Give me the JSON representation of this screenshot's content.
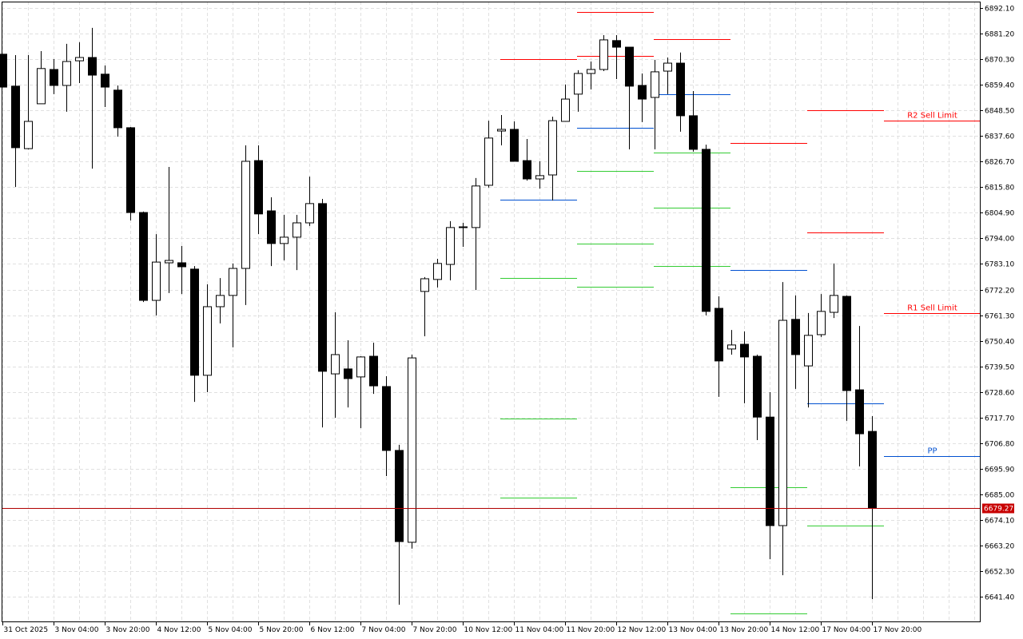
{
  "chart_data": {
    "type": "candlestick",
    "timeframe_hours": 4,
    "ylim": [
      6630.9,
      6894.8
    ],
    "grid": true,
    "price_ticks": [
      "6892.10",
      "6881.20",
      "6870.30",
      "6859.40",
      "6848.50",
      "6837.60",
      "6826.70",
      "6815.80",
      "6804.90",
      "6794.00",
      "6783.10",
      "6772.20",
      "6761.30",
      "6750.40",
      "6739.50",
      "6728.60",
      "6717.70",
      "6706.80",
      "6695.90",
      "6685.00",
      "6674.10",
      "6663.20",
      "6652.30",
      "6641.40"
    ],
    "time_labels": [
      {
        "bar": 0,
        "label": "31 Oct 2025"
      },
      {
        "bar": 4,
        "label": "3 Nov 04:00"
      },
      {
        "bar": 8,
        "label": "3 Nov 20:00"
      },
      {
        "bar": 12,
        "label": "4 Nov 12:00"
      },
      {
        "bar": 16,
        "label": "5 Nov 04:00"
      },
      {
        "bar": 20,
        "label": "5 Nov 20:00"
      },
      {
        "bar": 24,
        "label": "6 Nov 12:00"
      },
      {
        "bar": 28,
        "label": "7 Nov 04:00"
      },
      {
        "bar": 32,
        "label": "7 Nov 20:00"
      },
      {
        "bar": 36,
        "label": "10 Nov 12:00"
      },
      {
        "bar": 40,
        "label": "11 Nov 04:00"
      },
      {
        "bar": 44,
        "label": "11 Nov 20:00"
      },
      {
        "bar": 48,
        "label": "12 Nov 12:00"
      },
      {
        "bar": 52,
        "label": "13 Nov 04:00"
      },
      {
        "bar": 56,
        "label": "13 Nov 20:00"
      },
      {
        "bar": 60,
        "label": "14 Nov 12:00"
      },
      {
        "bar": 64,
        "label": "17 Nov 04:00"
      },
      {
        "bar": 68,
        "label": "17 Nov 20:00"
      }
    ],
    "candles_ohlc": [
      [
        6872.4,
        6872.4,
        6858.4,
        6858.4
      ],
      [
        6858.8,
        6872.0,
        6815.9,
        6832.6
      ],
      [
        6832.2,
        6872.0,
        6831.9,
        6843.8
      ],
      [
        6851.3,
        6873.7,
        6851.3,
        6866.3
      ],
      [
        6865.9,
        6870.3,
        6855.4,
        6859.1
      ],
      [
        6859.1,
        6876.8,
        6847.9,
        6869.3
      ],
      [
        6869.6,
        6877.5,
        6860.1,
        6871.0
      ],
      [
        6871.0,
        6883.6,
        6823.7,
        6863.5
      ],
      [
        6863.9,
        6867.6,
        6849.9,
        6858.4
      ],
      [
        6857.1,
        6859.1,
        6837.3,
        6841.1
      ],
      [
        6841.1,
        6841.4,
        6801.6,
        6805.0
      ],
      [
        6805.0,
        6805.4,
        6766.9,
        6767.6
      ],
      [
        6767.6,
        6795.8,
        6761.2,
        6783.9
      ],
      [
        6783.6,
        6824.4,
        6770.7,
        6784.6
      ],
      [
        6783.6,
        6790.8,
        6770.3,
        6781.9
      ],
      [
        6780.9,
        6782.2,
        6724.4,
        6735.7
      ],
      [
        6735.7,
        6774.4,
        6728.5,
        6764.9
      ],
      [
        6764.9,
        6777.1,
        6757.8,
        6769.7
      ],
      [
        6769.7,
        6783.3,
        6747.6,
        6781.2
      ],
      [
        6781.2,
        6833.6,
        6765.6,
        6826.8
      ],
      [
        6827.1,
        6833.6,
        6795.8,
        6804.4
      ],
      [
        6805.7,
        6811.5,
        6782.2,
        6791.8
      ],
      [
        6791.8,
        6804.0,
        6784.6,
        6794.5
      ],
      [
        6794.5,
        6804.0,
        6780.5,
        6800.6
      ],
      [
        6800.6,
        6820.3,
        6799.3,
        6808.8
      ],
      [
        6808.8,
        6810.8,
        6713.5,
        6737.4
      ],
      [
        6736.3,
        6762.5,
        6717.6,
        6744.5
      ],
      [
        6738.4,
        6750.6,
        6722.0,
        6734.3
      ],
      [
        6735.0,
        6743.8,
        6713.2,
        6743.5
      ],
      [
        6743.8,
        6749.6,
        6727.8,
        6731.2
      ],
      [
        6730.9,
        6735.3,
        6692.8,
        6703.7
      ],
      [
        6703.7,
        6706.1,
        6638.0,
        6664.9
      ],
      [
        6664.6,
        6744.5,
        6661.9,
        6743.1
      ],
      [
        6771.4,
        6777.5,
        6752.3,
        6776.8
      ],
      [
        6776.5,
        6785.3,
        6773.1,
        6783.3
      ],
      [
        6782.9,
        6801.3,
        6776.1,
        6798.6
      ],
      [
        6798.6,
        6800.6,
        6790.4,
        6798.9
      ],
      [
        6798.6,
        6819.7,
        6772.0,
        6816.3
      ],
      [
        6816.6,
        6844.1,
        6815.6,
        6836.7
      ],
      [
        6839.7,
        6846.5,
        6833.6,
        6840.4
      ],
      [
        6840.4,
        6843.8,
        6826.8,
        6826.8
      ],
      [
        6827.1,
        6836.3,
        6818.6,
        6819.3
      ],
      [
        6819.3,
        6826.8,
        6815.2,
        6820.7
      ],
      [
        6821.0,
        6845.8,
        6810.1,
        6844.1
      ],
      [
        6843.8,
        6859.5,
        6843.8,
        6853.3
      ],
      [
        6855.4,
        6865.6,
        6847.9,
        6864.2
      ],
      [
        6864.2,
        6869.3,
        6857.4,
        6865.9
      ],
      [
        6865.9,
        6880.5,
        6865.2,
        6878.5
      ],
      [
        6878.2,
        6880.5,
        6861.8,
        6875.4
      ],
      [
        6875.4,
        6875.4,
        6831.9,
        6858.8
      ],
      [
        6859.1,
        6864.2,
        6843.5,
        6853.3
      ],
      [
        6854.0,
        6870.0,
        6831.9,
        6864.9
      ],
      [
        6865.2,
        6871.0,
        6855.4,
        6868.6
      ],
      [
        6868.6,
        6873.1,
        6839.4,
        6846.2
      ],
      [
        6846.2,
        6856.7,
        6830.9,
        6831.9
      ],
      [
        6831.9,
        6833.9,
        6761.2,
        6762.9
      ],
      [
        6764.2,
        6769.3,
        6726.5,
        6741.8
      ],
      [
        6746.9,
        6755.0,
        6744.5,
        6748.6
      ],
      [
        6748.9,
        6754.4,
        6723.8,
        6743.5
      ],
      [
        6743.8,
        6744.5,
        6708.1,
        6717.9
      ],
      [
        6717.9,
        6728.5,
        6657.4,
        6671.7
      ],
      [
        6671.7,
        6775.4,
        6650.6,
        6759.1
      ],
      [
        6759.5,
        6769.7,
        6729.9,
        6744.5
      ],
      [
        6739.7,
        6762.2,
        6722.0,
        6752.7
      ],
      [
        6753.0,
        6770.3,
        6752.0,
        6762.9
      ],
      [
        6762.5,
        6783.3,
        6760.1,
        6769.7
      ],
      [
        6769.3,
        6769.7,
        6716.3,
        6729.2
      ],
      [
        6729.5,
        6756.7,
        6696.9,
        6710.8
      ],
      [
        6711.8,
        6718.3,
        6640.4,
        6679.27
      ]
    ],
    "pivot_days": [
      {
        "start_bar": 39,
        "end_bar": 45,
        "levels": [
          {
            "kind": "resistance",
            "price": 6870.3
          },
          {
            "kind": "pivot",
            "price": 6810.5
          },
          {
            "kind": "support",
            "price": 6777.1
          },
          {
            "kind": "support",
            "price": 6717.3
          },
          {
            "kind": "support",
            "price": 6683.6
          }
        ]
      },
      {
        "start_bar": 45,
        "end_bar": 51,
        "levels": [
          {
            "kind": "resistance",
            "price": 6890.4
          },
          {
            "kind": "resistance",
            "price": 6871.7
          },
          {
            "kind": "pivot",
            "price": 6841.1
          },
          {
            "kind": "support",
            "price": 6822.7
          },
          {
            "kind": "support",
            "price": 6791.8
          },
          {
            "kind": "support",
            "price": 6773.4
          }
        ]
      },
      {
        "start_bar": 51,
        "end_bar": 57,
        "levels": [
          {
            "kind": "resistance",
            "price": 6878.8
          },
          {
            "kind": "pivot",
            "price": 6855.4
          },
          {
            "kind": "support",
            "price": 6830.5
          },
          {
            "kind": "support",
            "price": 6807.1
          },
          {
            "kind": "support",
            "price": 6782.2
          }
        ]
      },
      {
        "start_bar": 57,
        "end_bar": 63,
        "levels": [
          {
            "kind": "resistance",
            "price": 6834.6
          },
          {
            "kind": "pivot",
            "price": 6780.5
          },
          {
            "kind": "support",
            "price": 6688.0
          },
          {
            "kind": "support",
            "price": 6634.3
          }
        ]
      },
      {
        "start_bar": 63,
        "end_bar": 69,
        "levels": [
          {
            "kind": "resistance",
            "price": 6848.6
          },
          {
            "kind": "resistance",
            "price": 6796.5
          },
          {
            "kind": "pivot",
            "price": 6723.7
          },
          {
            "kind": "support",
            "price": 6671.7
          }
        ]
      }
    ],
    "current_levels": [
      {
        "label": "R2 Sell Limit",
        "kind": "resistance",
        "price": 6844.1
      },
      {
        "label": "R1 Sell Limit",
        "kind": "resistance",
        "price": 6762.2
      },
      {
        "label": "PP",
        "kind": "pivot",
        "price": 6701.3
      }
    ],
    "current_price": "6679.27",
    "colors": {
      "resistance": "#ff0000",
      "pivot": "#0050d0",
      "support": "#33cc33",
      "bull_body": "#ffffff",
      "bear_body": "#000000",
      "candle_outline": "#000000",
      "current_price_line": "#b00000",
      "current_price_badge": "#c80000",
      "grid": "#e0e0e0"
    }
  }
}
